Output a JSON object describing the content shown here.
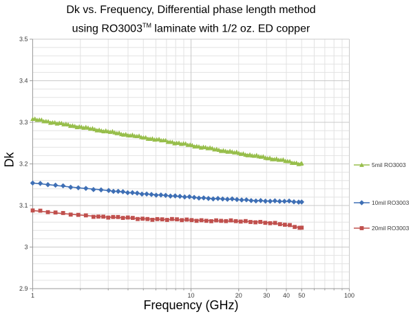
{
  "title": {
    "line1": "Dk vs. Frequency, Differential phase length method",
    "line2_pre": "using RO3003",
    "line2_sup": "TM",
    "line2_post": " laminate with 1/2 oz. ED copper"
  },
  "chart_data": {
    "type": "line",
    "title": "Dk vs. Frequency, Differential phase length method using RO3003(TM) laminate with 1/2 oz. ED copper",
    "xlabel": "Frequency (GHz)",
    "ylabel": "Dk",
    "x_scale": "log",
    "xlim": [
      1,
      100
    ],
    "ylim": [
      2.9,
      3.5
    ],
    "y_major_step": 0.1,
    "y_minor_step": 0.02,
    "grid": "both",
    "legend_position": "right-outside",
    "x_ticks": [
      {
        "v": 1,
        "label": "1"
      },
      {
        "v": 10,
        "label": "10"
      },
      {
        "v": 20,
        "label": "20"
      },
      {
        "v": 30,
        "label": "30"
      },
      {
        "v": 40,
        "label": "40"
      },
      {
        "v": 50,
        "label": "50"
      },
      {
        "v": 100,
        "label": "100"
      }
    ],
    "y_ticks": [
      {
        "v": 3.5,
        "label": "3.5"
      },
      {
        "v": 3.4,
        "label": "3.4"
      },
      {
        "v": 3.3,
        "label": "3.3"
      },
      {
        "v": 3.2,
        "label": "3.2"
      },
      {
        "v": 3.1,
        "label": "3.1"
      },
      {
        "v": 3.0,
        "label": "3"
      },
      {
        "v": 2.9,
        "label": "2.9"
      }
    ],
    "series": [
      {
        "name": "5mil RO3003",
        "color": "#97BE4B",
        "marker": "triangle",
        "points": [
          [
            1,
            3.308
          ],
          [
            1.2,
            3.303
          ],
          [
            1.5,
            3.297
          ],
          [
            2,
            3.289
          ],
          [
            2.5,
            3.283
          ],
          [
            3,
            3.278
          ],
          [
            4,
            3.27
          ],
          [
            5,
            3.264
          ],
          [
            6,
            3.259
          ],
          [
            7,
            3.255
          ],
          [
            8,
            3.251
          ],
          [
            9,
            3.248
          ],
          [
            10,
            3.245
          ],
          [
            12,
            3.24
          ],
          [
            15,
            3.234
          ],
          [
            20,
            3.226
          ],
          [
            25,
            3.22
          ],
          [
            30,
            3.215
          ],
          [
            35,
            3.211
          ],
          [
            40,
            3.207
          ],
          [
            45,
            3.203
          ],
          [
            50,
            3.2
          ]
        ]
      },
      {
        "name": "10mil RO3003",
        "color": "#3E6FB5",
        "marker": "diamond",
        "points": [
          [
            1,
            3.154
          ],
          [
            1.2,
            3.151
          ],
          [
            1.5,
            3.147
          ],
          [
            2,
            3.142
          ],
          [
            2.5,
            3.139
          ],
          [
            3,
            3.136
          ],
          [
            4,
            3.131
          ],
          [
            5,
            3.128
          ],
          [
            6,
            3.126
          ],
          [
            7,
            3.124
          ],
          [
            8,
            3.122
          ],
          [
            9,
            3.121
          ],
          [
            10,
            3.12
          ],
          [
            12,
            3.118
          ],
          [
            15,
            3.116
          ],
          [
            20,
            3.114
          ],
          [
            25,
            3.112
          ],
          [
            30,
            3.111
          ],
          [
            35,
            3.11
          ],
          [
            40,
            3.11
          ],
          [
            45,
            3.109
          ],
          [
            50,
            3.108
          ]
        ]
      },
      {
        "name": "20mil RO3003",
        "color": "#C0504D",
        "marker": "square",
        "points": [
          [
            1,
            3.088
          ],
          [
            1.2,
            3.085
          ],
          [
            1.5,
            3.081
          ],
          [
            2,
            3.077
          ],
          [
            2.5,
            3.074
          ],
          [
            3,
            3.072
          ],
          [
            4,
            3.07
          ],
          [
            5,
            3.068
          ],
          [
            6,
            3.067
          ],
          [
            7,
            3.066
          ],
          [
            8,
            3.066
          ],
          [
            9,
            3.065
          ],
          [
            10,
            3.065
          ],
          [
            12,
            3.064
          ],
          [
            15,
            3.063
          ],
          [
            20,
            3.062
          ],
          [
            25,
            3.061
          ],
          [
            30,
            3.059
          ],
          [
            35,
            3.056
          ],
          [
            40,
            3.053
          ],
          [
            45,
            3.049
          ],
          [
            50,
            3.046
          ]
        ]
      }
    ],
    "colors": {
      "grid_minor": "#E2E2E2",
      "grid_major": "#C9C9C9",
      "axis": "#9A9A9A",
      "tick_label": "#3C3C3C",
      "legend_text": "#3A3A3A",
      "title_text": "#000000"
    }
  }
}
